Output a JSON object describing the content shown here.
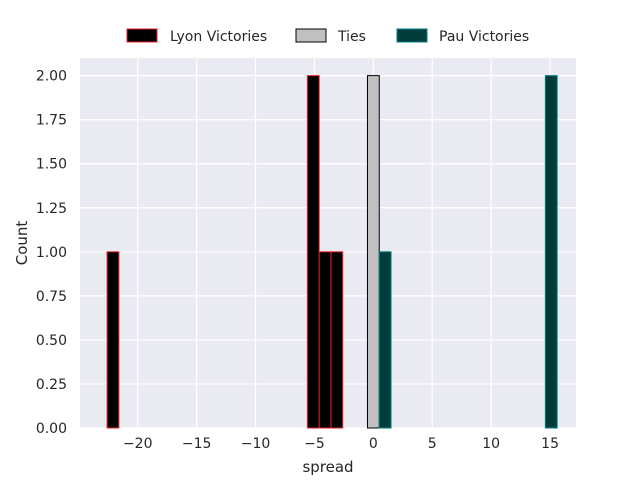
{
  "chart_data": {
    "type": "bar",
    "subtype": "histogram",
    "xlabel": "spread",
    "ylabel": "Count",
    "xlim": [
      -24.9,
      17.2
    ],
    "ylim": [
      0,
      2.1
    ],
    "grid": true,
    "legend_placement": "top-center",
    "bin_width": 1,
    "x_ticks": [
      {
        "value": -20,
        "label": "−20"
      },
      {
        "value": -15,
        "label": "−15"
      },
      {
        "value": -10,
        "label": "−10"
      },
      {
        "value": -5,
        "label": "−5"
      },
      {
        "value": 0,
        "label": "0"
      },
      {
        "value": 5,
        "label": "5"
      },
      {
        "value": 10,
        "label": "10"
      },
      {
        "value": 15,
        "label": "15"
      }
    ],
    "y_ticks": [
      {
        "value": 0.0,
        "label": "0.00"
      },
      {
        "value": 0.25,
        "label": "0.25"
      },
      {
        "value": 0.5,
        "label": "0.50"
      },
      {
        "value": 0.75,
        "label": "0.75"
      },
      {
        "value": 1.0,
        "label": "1.00"
      },
      {
        "value": 1.25,
        "label": "1.25"
      },
      {
        "value": 1.5,
        "label": "1.50"
      },
      {
        "value": 1.75,
        "label": "1.75"
      },
      {
        "value": 2.0,
        "label": "2.00"
      }
    ],
    "series": [
      {
        "name": "Lyon Victories",
        "fill": "#000000",
        "edge": "#e8202a",
        "bins": [
          {
            "x0": -22.6,
            "x1": -21.6,
            "count": 1
          },
          {
            "x0": -5.6,
            "x1": -4.6,
            "count": 2
          },
          {
            "x0": -4.6,
            "x1": -3.6,
            "count": 1
          },
          {
            "x0": -3.6,
            "x1": -2.6,
            "count": 1
          }
        ]
      },
      {
        "name": "Ties",
        "fill": "#c0c0c0",
        "edge": "#000000",
        "bins": [
          {
            "x0": -0.5,
            "x1": 0.5,
            "count": 2
          }
        ]
      },
      {
        "name": "Pau Victories",
        "fill": "#003c3c",
        "edge": "#008080",
        "bins": [
          {
            "x0": 0.5,
            "x1": 1.5,
            "count": 1
          },
          {
            "x0": 14.6,
            "x1": 15.6,
            "count": 2
          }
        ]
      }
    ]
  },
  "colors": {
    "plot_background": "#eaeaf2",
    "grid": "#ffffff",
    "text": "#262626"
  }
}
